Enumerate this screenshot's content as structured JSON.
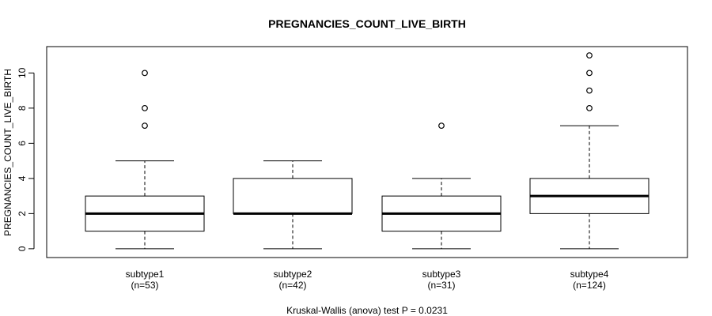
{
  "chart_data": {
    "type": "boxplot",
    "title": "PREGNANCIES_COUNT_LIVE_BIRTH",
    "ylabel": "PREGNANCIES_COUNT_LIVE_BIRTH",
    "xlabel": "",
    "footnote": "Kruskal-Wallis (anova) test P = 0.0231",
    "ylim": [
      -0.5,
      11.5
    ],
    "yticks": [
      0,
      2,
      4,
      6,
      8,
      10
    ],
    "grid": false,
    "groups": [
      {
        "name": "subtype1",
        "n_label": "(n=53)",
        "whisker_low": 0,
        "q1": 1,
        "median": 2,
        "q3": 3,
        "whisker_high": 5,
        "outliers": [
          7,
          8,
          10
        ]
      },
      {
        "name": "subtype2",
        "n_label": "(n=42)",
        "whisker_low": 0,
        "q1": 2,
        "median": 2,
        "q3": 4,
        "whisker_high": 5,
        "outliers": []
      },
      {
        "name": "subtype3",
        "n_label": "(n=31)",
        "whisker_low": 0,
        "q1": 1,
        "median": 2,
        "q3": 3,
        "whisker_high": 4,
        "outliers": [
          7
        ]
      },
      {
        "name": "subtype4",
        "n_label": "(n=124)",
        "whisker_low": 0,
        "q1": 2,
        "median": 3,
        "q3": 4,
        "whisker_high": 7,
        "outliers": [
          8,
          9,
          10,
          11
        ]
      }
    ]
  }
}
